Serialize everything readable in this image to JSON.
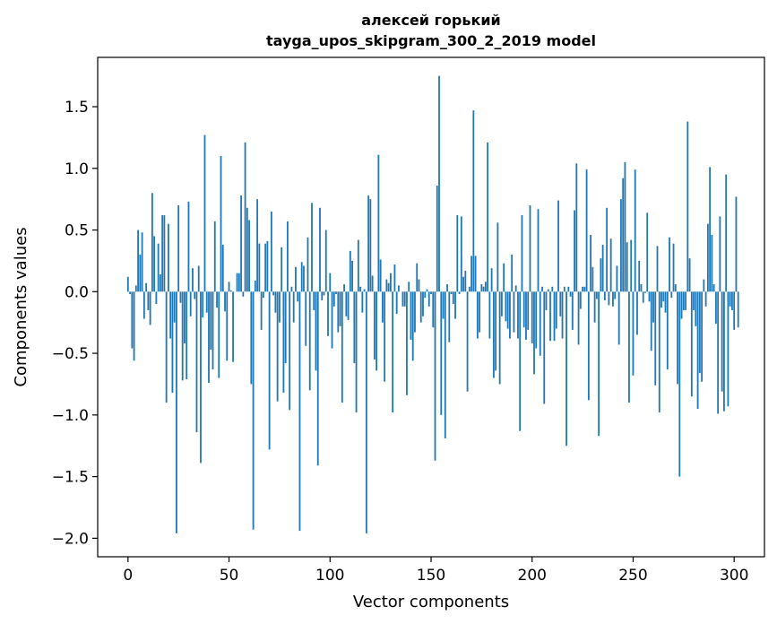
{
  "chart_data": {
    "type": "bar",
    "title_line1": "алексей горький",
    "title_line2": "tayga_upos_skipgram_300_2_2019 model",
    "xlabel": "Vector components",
    "ylabel": "Components values",
    "xlim": [
      -15,
      315
    ],
    "ylim": [
      -2.15,
      1.9
    ],
    "xticks": [
      0,
      50,
      100,
      150,
      200,
      250,
      300
    ],
    "xtick_labels": [
      "0",
      "50",
      "100",
      "150",
      "200",
      "250",
      "300"
    ],
    "yticks": [
      -2.0,
      -1.5,
      -1.0,
      -0.5,
      0.0,
      0.5,
      1.0,
      1.5
    ],
    "ytick_labels": [
      "−2.0",
      "−1.5",
      "−1.0",
      "−0.5",
      "0.0",
      "0.5",
      "1.0",
      "1.5"
    ],
    "bar_color": "#1f77b4",
    "grid": false,
    "values": [
      0.12,
      -0.02,
      -0.46,
      -0.56,
      0.05,
      0.5,
      0.3,
      0.48,
      -0.22,
      0.07,
      -0.15,
      -0.27,
      0.8,
      0.45,
      -0.1,
      0.39,
      0.14,
      0.62,
      0.62,
      -0.9,
      0.55,
      -0.38,
      -0.82,
      -0.25,
      -1.96,
      0.7,
      -0.09,
      -0.72,
      -0.42,
      -0.71,
      0.73,
      -0.2,
      0.19,
      -0.06,
      -1.14,
      0.21,
      -1.39,
      -0.21,
      1.27,
      -0.17,
      -0.74,
      -0.47,
      -0.63,
      0.57,
      -0.13,
      -0.7,
      1.1,
      0.38,
      -0.16,
      -0.56,
      0.08,
      0.01,
      -0.57,
      0.0,
      0.15,
      0.15,
      0.78,
      -0.04,
      1.21,
      0.68,
      0.58,
      -0.75,
      -1.93,
      0.09,
      0.75,
      0.39,
      -0.31,
      -0.05,
      0.39,
      0.41,
      -1.28,
      0.65,
      -0.03,
      -0.17,
      -0.89,
      -0.25,
      0.36,
      -0.82,
      -0.58,
      0.57,
      -0.96,
      0.04,
      -0.25,
      0.2,
      -0.08,
      -1.94,
      0.24,
      0.21,
      -0.44,
      0.44,
      -0.8,
      0.72,
      -0.15,
      -0.64,
      -1.41,
      0.68,
      -0.07,
      -0.03,
      0.5,
      -0.36,
      0.15,
      -0.46,
      -0.12,
      -0.02,
      -0.33,
      -0.28,
      -0.9,
      0.06,
      -0.2,
      -0.23,
      0.33,
      0.25,
      -0.58,
      -0.98,
      0.42,
      0.04,
      -0.17,
      0.02,
      -1.96,
      0.78,
      0.75,
      0.13,
      -0.55,
      -0.64,
      1.11,
      0.26,
      -0.25,
      -0.73,
      0.1,
      0.07,
      0.15,
      -0.98,
      0.22,
      -0.18,
      0.05,
      0.0,
      -0.12,
      -0.12,
      -0.84,
      0.08,
      -0.39,
      -0.56,
      -0.33,
      0.23,
      0.1,
      -0.25,
      -0.2,
      -0.05,
      0.02,
      -0.12,
      -0.02,
      -0.29,
      -1.37,
      0.86,
      1.75,
      -1.0,
      -0.22,
      -1.19,
      0.06,
      -0.41,
      -0.02,
      -0.1,
      -0.22,
      0.62,
      -0.02,
      0.61,
      0.12,
      0.17,
      -0.81,
      0.04,
      0.29,
      1.47,
      0.29,
      -0.38,
      -0.33,
      0.06,
      0.04,
      0.08,
      1.21,
      -0.38,
      0.19,
      -0.7,
      -0.64,
      0.56,
      -0.75,
      -0.2,
      0.23,
      -0.24,
      -0.3,
      -0.38,
      0.3,
      -0.33,
      0.05,
      -0.38,
      -1.13,
      0.62,
      -0.29,
      -0.39,
      -0.31,
      0.7,
      -0.42,
      -0.67,
      -0.46,
      0.67,
      -0.52,
      0.04,
      -0.91,
      -0.15,
      0.02,
      -0.4,
      0.04,
      -0.4,
      -0.3,
      0.74,
      -0.2,
      -0.38,
      0.04,
      -1.25,
      0.04,
      -0.04,
      -0.31,
      0.66,
      1.04,
      -0.43,
      -0.14,
      0.04,
      0.04,
      0.99,
      -0.88,
      0.46,
      0.2,
      -0.25,
      -0.06,
      -1.17,
      0.27,
      0.38,
      -0.07,
      0.68,
      -0.11,
      0.43,
      -0.12,
      -0.06,
      0.21,
      -0.43,
      0.75,
      0.92,
      1.05,
      0.4,
      -0.9,
      0.42,
      -0.68,
      0.99,
      -0.35,
      0.25,
      0.06,
      -0.09,
      -0.01,
      0.64,
      -0.08,
      -0.48,
      -0.25,
      -0.76,
      0.37,
      -0.98,
      -0.13,
      -0.08,
      -0.17,
      -0.63,
      0.44,
      -0.05,
      0.39,
      0.06,
      -0.75,
      -1.5,
      -0.22,
      -0.15,
      -0.15,
      1.38,
      0.27,
      -0.85,
      -0.15,
      -0.28,
      -0.95,
      -0.66,
      -0.73,
      0.1,
      -0.12,
      0.55,
      1.01,
      0.46,
      0.06,
      -0.26,
      -0.99,
      0.61,
      -0.81,
      -0.97,
      0.95,
      -0.93,
      -0.12,
      -0.15,
      -0.31,
      0.77,
      -0.29
    ]
  }
}
